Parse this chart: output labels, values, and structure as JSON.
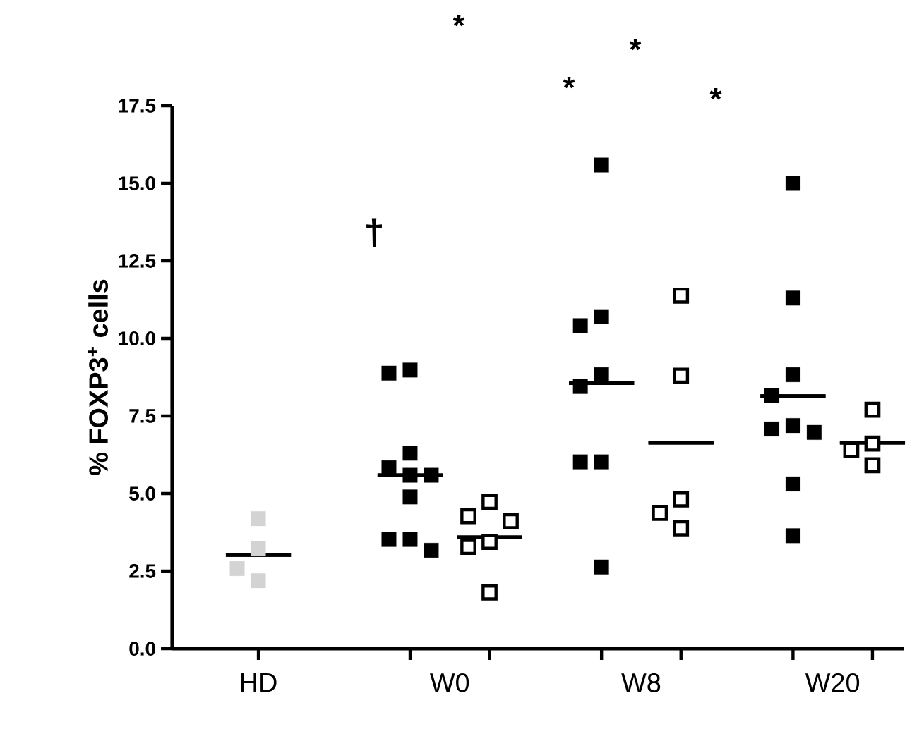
{
  "chart_data": {
    "type": "scatter",
    "ylabel": "% FOXP3$^{+}$ cells",
    "categories": [
      "HD",
      "W0",
      "W8",
      "W20"
    ],
    "ylim": [
      0,
      17.5
    ],
    "yticks": [
      {
        "value": 0,
        "label": "0.0"
      },
      {
        "value": 2.5,
        "label": "2.5"
      },
      {
        "value": 5,
        "label": "5.0"
      },
      {
        "value": 7.5,
        "label": "7.5"
      },
      {
        "value": 10,
        "label": "10.0"
      },
      {
        "value": 12.5,
        "label": "12.5"
      },
      {
        "value": 15,
        "label": "15.0"
      },
      {
        "value": 17.5,
        "label": "17.5"
      }
    ],
    "series": [
      {
        "color": "#d3d3d3",
        "marker": "square",
        "x": [
          "HD",
          "HD",
          "HD",
          "HD"
        ],
        "values": [
          4.19,
          3.22,
          2.58,
          2.19
        ]
      },
      {
        "type": "box",
        "color": "#000000",
        "x": [
          "HD"
        ],
        "boxes": [
          {
            "low": 3.02,
            "q1": 3.02,
            "median": 3.02,
            "q3": 3.02,
            "high": 3.02
          }
        ]
      },
      {
        "color": "#000000",
        "marker": "square",
        "x": [
          "W0",
          "W0",
          "W0",
          "W0",
          "W0",
          "W0",
          "W0",
          "W0",
          "W0",
          "W0",
          "W8",
          "W8",
          "W8",
          "W8",
          "W8",
          "W8",
          "W8",
          "W8",
          "W20",
          "W20",
          "W20",
          "W20",
          "W20",
          "W20",
          "W20",
          "W20",
          "W20"
        ],
        "values": [
          8.98,
          8.88,
          6.3,
          5.83,
          5.59,
          5.59,
          4.89,
          3.52,
          3.52,
          3.17,
          15.59,
          10.7,
          10.41,
          8.83,
          8.45,
          6.02,
          6.02,
          2.63,
          15.0,
          11.3,
          8.83,
          8.16,
          7.19,
          7.08,
          6.97,
          5.31,
          3.64
        ]
      },
      {
        "type": "box",
        "color": "#000000",
        "x": [
          "W0",
          "W8",
          "W20"
        ],
        "boxes": [
          {
            "low": 5.59,
            "q1": 5.59,
            "median": 5.59,
            "q3": 5.59,
            "high": 5.59
          },
          {
            "low": 8.56,
            "q1": 8.56,
            "median": 8.56,
            "q3": 8.56,
            "high": 8.56
          },
          {
            "low": 8.14,
            "q1": 8.14,
            "median": 8.14,
            "q3": 8.14,
            "high": 8.14
          }
        ]
      },
      {
        "color": "#ffffff",
        "marker": "square",
        "x": [
          "W0",
          "W0",
          "W0",
          "W0",
          "W0",
          "W0",
          "W8",
          "W8",
          "W8",
          "W8",
          "W8",
          "W20",
          "W20",
          "W20",
          "W20"
        ],
        "values": [
          4.73,
          4.27,
          4.11,
          3.44,
          3.28,
          1.81,
          11.38,
          8.8,
          4.81,
          4.38,
          3.88,
          7.7,
          6.61,
          6.41,
          5.91
        ]
      },
      {
        "type": "box",
        "color": "#000000",
        "x": [
          "W0",
          "W8",
          "W20"
        ],
        "boxes": [
          {
            "low": 3.59,
            "q1": 3.59,
            "median": 3.59,
            "q3": 3.59,
            "high": 3.59
          },
          {
            "low": 6.64,
            "q1": 6.64,
            "median": 6.64,
            "q3": 6.64,
            "high": 6.64
          },
          {
            "low": 6.64,
            "q1": 6.64,
            "median": 6.64,
            "q3": 6.64,
            "high": 6.64
          }
        ]
      }
    ],
    "annotations": [
      "†",
      "*",
      "*",
      "*",
      "*"
    ]
  }
}
